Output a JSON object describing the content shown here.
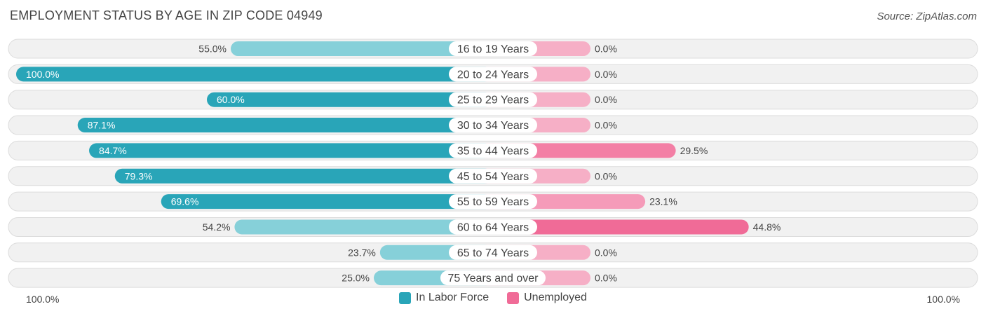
{
  "header": {
    "title": "EMPLOYMENT STATUS BY AGE IN ZIP CODE 04949",
    "source": "Source: ZipAtlas.com"
  },
  "colors": {
    "labor_strong": "#29a5b8",
    "labor_light": "#86d0d9",
    "unemployed_strong": "#f06b97",
    "unemployed_light": "#f6afc6",
    "row_bg": "#f1f1f1",
    "row_border": "#dcdcdc"
  },
  "chart_data": {
    "type": "bar",
    "orientation": "horizontal-diverging",
    "title": "EMPLOYMENT STATUS BY AGE IN ZIP CODE 04949",
    "categories": [
      "16 to 19 Years",
      "20 to 24 Years",
      "25 to 29 Years",
      "30 to 34 Years",
      "35 to 44 Years",
      "45 to 54 Years",
      "55 to 59 Years",
      "60 to 64 Years",
      "65 to 74 Years",
      "75 Years and over"
    ],
    "series": [
      {
        "name": "In Labor Force",
        "values": [
          55.0,
          100.0,
          60.0,
          87.1,
          84.7,
          79.3,
          69.6,
          54.2,
          23.7,
          25.0
        ],
        "labels": [
          "55.0%",
          "100.0%",
          "60.0%",
          "87.1%",
          "84.7%",
          "79.3%",
          "69.6%",
          "54.2%",
          "23.7%",
          "25.0%"
        ]
      },
      {
        "name": "Unemployed",
        "values": [
          0.0,
          0.0,
          0.0,
          0.0,
          29.5,
          0.0,
          23.1,
          44.8,
          0.0,
          0.0
        ],
        "labels": [
          "0.0%",
          "0.0%",
          "0.0%",
          "0.0%",
          "29.5%",
          "0.0%",
          "23.1%",
          "44.8%",
          "0.0%",
          "0.0%"
        ]
      }
    ],
    "xlim": [
      -100,
      100
    ],
    "axis_labels": {
      "left": "100.0%",
      "right": "100.0%"
    },
    "legend": {
      "position": "bottom-center",
      "items": [
        "In Labor Force",
        "Unemployed"
      ]
    }
  }
}
